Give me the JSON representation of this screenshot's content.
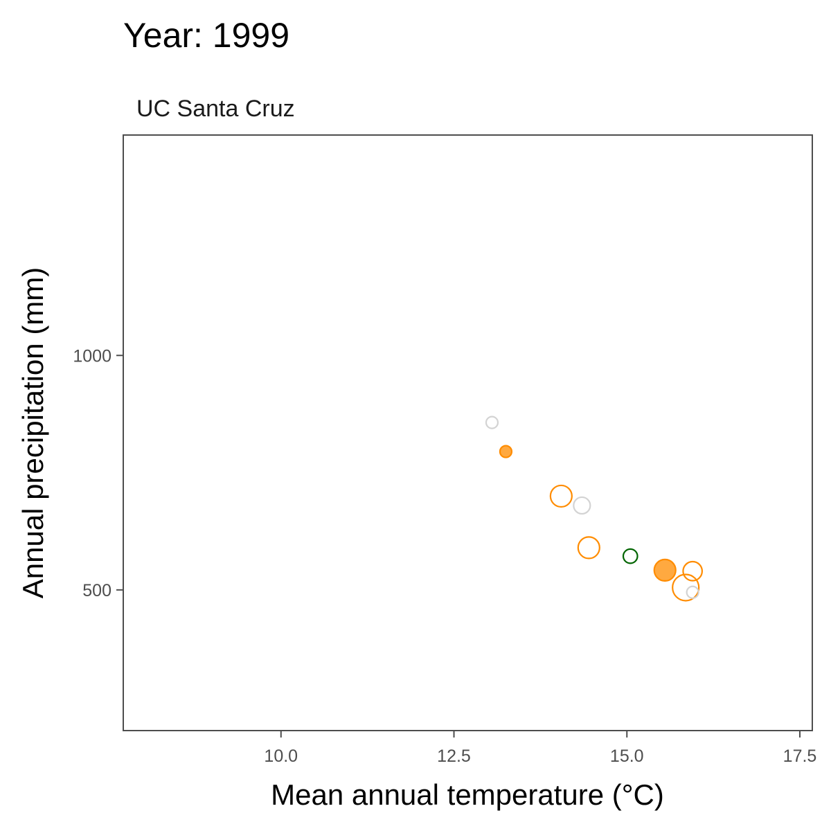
{
  "chart_data": {
    "type": "scatter",
    "title": "Year: 1999",
    "subtitle": "UC Santa Cruz",
    "xlabel": "Mean annual temperature (°C)",
    "ylabel": "Annual precipitation (mm)",
    "xlim": [
      7.72,
      17.68
    ],
    "ylim": [
      200,
      1470
    ],
    "x_ticks": [
      {
        "value": 10.0,
        "label": "10.0"
      },
      {
        "value": 12.5,
        "label": "12.5"
      },
      {
        "value": 15.0,
        "label": "15.0"
      },
      {
        "value": 17.5,
        "label": "17.5"
      }
    ],
    "y_ticks": [
      {
        "value": 500,
        "label": "500"
      },
      {
        "value": 1000,
        "label": "1000"
      }
    ],
    "grid": false,
    "colors": {
      "orange": "#ff8c00",
      "grey": "#d3d3d3",
      "green": "#006400"
    },
    "points": [
      {
        "x": 13.05,
        "y": 857,
        "size": 1,
        "color": "grey",
        "filled": false
      },
      {
        "x": 13.25,
        "y": 795,
        "size": 1,
        "color": "orange",
        "filled": true
      },
      {
        "x": 14.05,
        "y": 700,
        "size": 3,
        "color": "orange",
        "filled": false
      },
      {
        "x": 14.35,
        "y": 680,
        "size": 2,
        "color": "grey",
        "filled": false
      },
      {
        "x": 14.45,
        "y": 590,
        "size": 3,
        "color": "orange",
        "filled": false
      },
      {
        "x": 15.05,
        "y": 572,
        "size": 1.5,
        "color": "green",
        "filled": false
      },
      {
        "x": 15.55,
        "y": 542,
        "size": 3,
        "color": "orange",
        "filled": true
      },
      {
        "x": 15.95,
        "y": 540,
        "size": 2.5,
        "color": "orange",
        "filled": false
      },
      {
        "x": 15.85,
        "y": 505,
        "size": 4,
        "color": "orange",
        "filled": false
      },
      {
        "x": 15.95,
        "y": 495,
        "size": 1,
        "color": "grey",
        "filled": false
      }
    ]
  }
}
